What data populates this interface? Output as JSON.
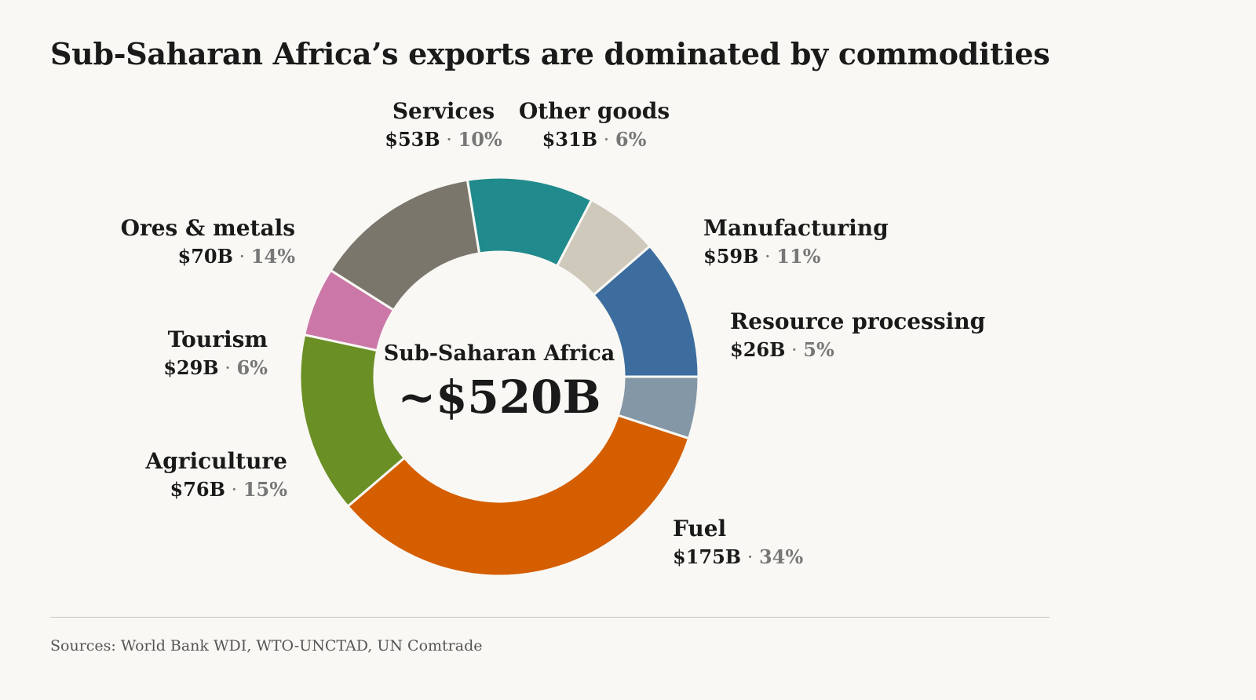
{
  "title": "Sub-Saharan Africa’s exports are dominated by commodities",
  "sources": "Sources: World Bank WDI, WTO-UNCTAD, UN Comtrade",
  "chart_data": {
    "type": "pie",
    "style": "donut",
    "center_label": "Sub-Saharan Africa",
    "center_value": "~$520B",
    "slices": [
      {
        "name": "Resource processing",
        "value": 26,
        "value_label": "$26B",
        "pct_label": "5%",
        "color": "#8497a6"
      },
      {
        "name": "Fuel",
        "value": 175,
        "value_label": "$175B",
        "pct_label": "34%",
        "color": "#d45e00"
      },
      {
        "name": "Agriculture",
        "value": 76,
        "value_label": "$76B",
        "pct_label": "15%",
        "color": "#6a8f25"
      },
      {
        "name": "Tourism",
        "value": 29,
        "value_label": "$29B",
        "pct_label": "6%",
        "color": "#cb78a8"
      },
      {
        "name": "Ores & metals",
        "value": 70,
        "value_label": "$70B",
        "pct_label": "14%",
        "color": "#7a766c"
      },
      {
        "name": "Services",
        "value": 53,
        "value_label": "$53B",
        "pct_label": "10%",
        "color": "#218a8c"
      },
      {
        "name": "Other goods",
        "value": 31,
        "value_label": "$31B",
        "pct_label": "6%",
        "color": "#cfc9bc"
      },
      {
        "name": "Manufacturing",
        "value": 59,
        "value_label": "$59B",
        "pct_label": "11%",
        "color": "#3c6d9e"
      }
    ]
  }
}
